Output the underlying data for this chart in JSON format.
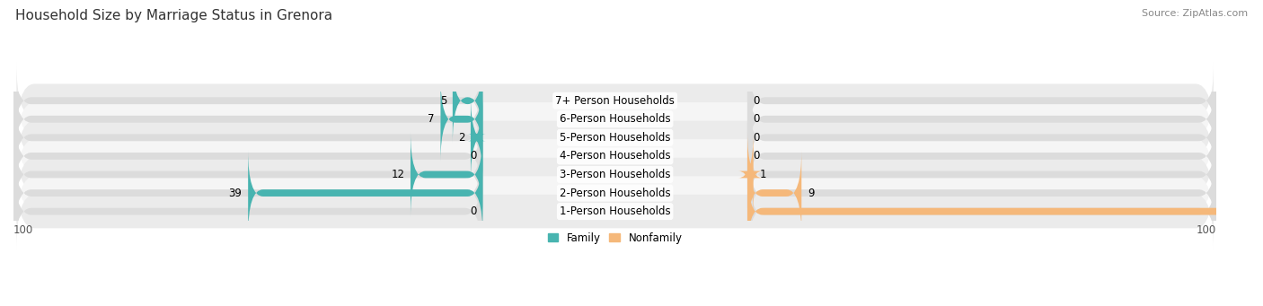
{
  "title": "Household Size by Marriage Status in Grenora",
  "source": "Source: ZipAtlas.com",
  "categories": [
    "7+ Person Households",
    "6-Person Households",
    "5-Person Households",
    "4-Person Households",
    "3-Person Households",
    "2-Person Households",
    "1-Person Households"
  ],
  "family_values": [
    5,
    7,
    2,
    0,
    12,
    39,
    0
  ],
  "nonfamily_values": [
    0,
    0,
    0,
    0,
    1,
    9,
    81
  ],
  "family_color": "#48B4B0",
  "nonfamily_color": "#F5B87A",
  "bar_bg_color": "#DCDCDC",
  "row_bg_even": "#EBEBEB",
  "row_bg_odd": "#F5F5F5",
  "max_val": 100,
  "legend_family": "Family",
  "legend_nonfamily": "Nonfamily",
  "title_fontsize": 11,
  "source_fontsize": 8,
  "label_fontsize": 8.5,
  "val_fontsize": 8.5
}
